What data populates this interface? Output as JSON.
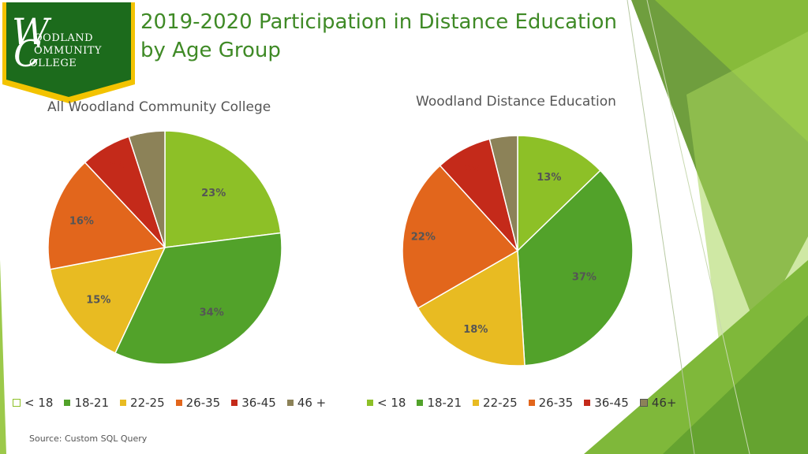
{
  "colors": {
    "lime": "#8dc027",
    "green": "#52a22a",
    "yellow": "#e8bb22",
    "orange": "#e2661c",
    "red": "#c42a1a",
    "taupe": "#8c8258",
    "title": "#3f8a26"
  },
  "logo": {
    "mark_w": "W",
    "mark_c": "C",
    "line1": "OODLAND",
    "line2": "OMMUNITY",
    "line3": "OLLEGE"
  },
  "title": {
    "line1": "2019-2020 Participation in Distance Education",
    "line2": "by Age Group"
  },
  "source": "Source: Custom SQL Query",
  "chart_data": [
    {
      "type": "pie",
      "title": "All Woodland Community College",
      "categories": [
        "< 18",
        "18-21",
        "22-25",
        "26-35",
        "36-45",
        "46 +"
      ],
      "values": [
        23,
        34,
        15,
        16,
        7,
        5
      ],
      "labels": [
        "23%",
        "34%",
        "15%",
        "16%",
        "7%",
        "5%"
      ],
      "legend_position": "bottom"
    },
    {
      "type": "pie",
      "title": "Woodland Distance Education",
      "categories": [
        "< 18",
        "18-21",
        "22-25",
        "26-35",
        "36-45",
        "46+"
      ],
      "values": [
        13,
        37,
        18,
        22,
        8,
        4
      ],
      "labels": [
        "13%",
        "37%",
        "18%",
        "22%",
        "8%",
        "4%"
      ],
      "legend_position": "bottom"
    }
  ]
}
